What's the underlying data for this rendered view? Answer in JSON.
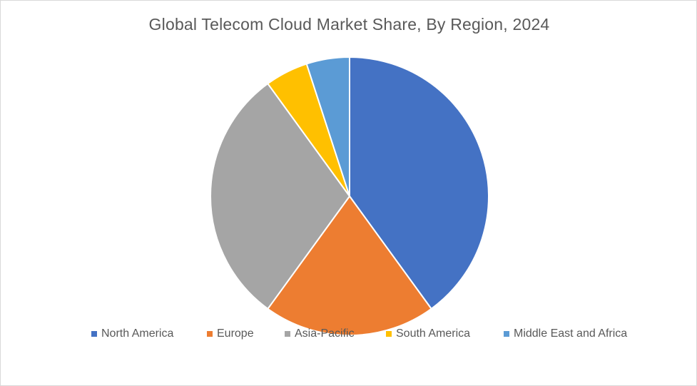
{
  "chart_data": {
    "type": "pie",
    "title": "Global Telecom Cloud Market Share, By Region, 2024",
    "categories": [
      "North America",
      "Europe",
      "Asia-Pacific",
      "South America",
      "Middle East and Africa"
    ],
    "values": [
      40,
      20,
      30,
      5,
      5
    ],
    "unit": "%",
    "colors": [
      "#4472c4",
      "#ed7d31",
      "#a5a5a5",
      "#ffc000",
      "#5b9bd5"
    ],
    "legend_position": "bottom",
    "start_angle": "12 o'clock",
    "direction": "clockwise"
  }
}
